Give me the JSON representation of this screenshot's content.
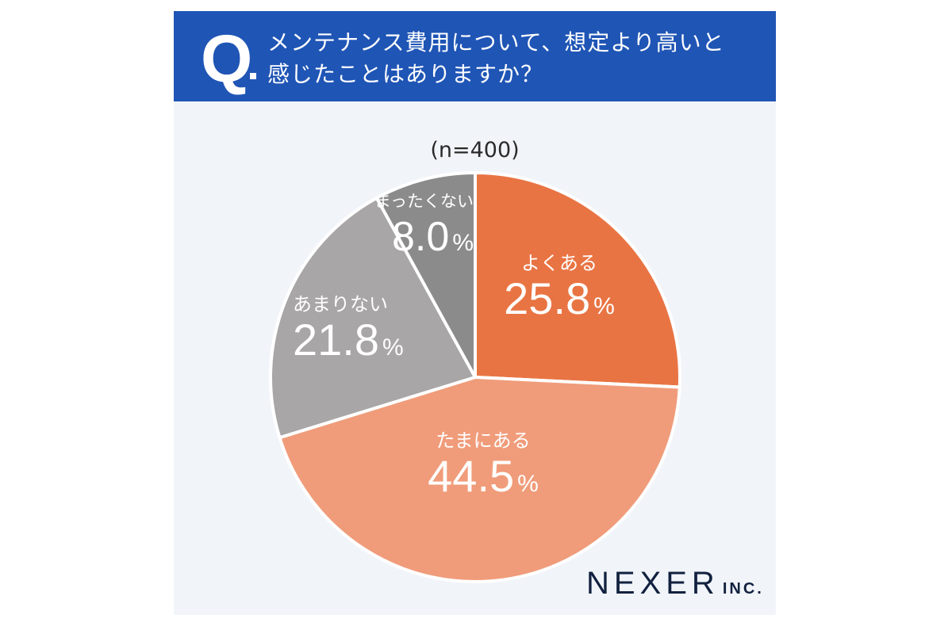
{
  "header": {
    "q_mark": "Q",
    "question_line1": "メンテナンス費用について、想定より高いと",
    "question_line2": "感じたことはありますか？"
  },
  "sample_size": "(n=400)",
  "colors": {
    "header_bg": "#1f55b5",
    "card_bg": "#f1f5fa",
    "yoku_aru": "#e97443",
    "tamani_aru": "#f09c7a",
    "amari_nai": "#a8a6a6",
    "mattaku_nai": "#8c8b8b"
  },
  "labels": [
    {
      "category": "よくある",
      "value": "25.8",
      "unit": "%"
    },
    {
      "category": "たまにある",
      "value": "44.5",
      "unit": "%"
    },
    {
      "category": "あまりない",
      "value": "21.8",
      "unit": "%"
    },
    {
      "category": "まったくない",
      "value": "8.0",
      "unit": "%"
    }
  ],
  "logo": {
    "main": "NEXER",
    "suffix": "INC."
  },
  "chart_data": {
    "type": "pie",
    "title": "メンテナンス費用について、想定より高いと感じたことはありますか？",
    "subtitle": "(n=400)",
    "categories": [
      "よくある",
      "たまにある",
      "あまりない",
      "まったくない"
    ],
    "values": [
      25.8,
      44.5,
      21.8,
      8.0
    ],
    "unit": "%",
    "start_angle": "12 o'clock, clockwise",
    "legend": "none (labels inside slices)"
  }
}
